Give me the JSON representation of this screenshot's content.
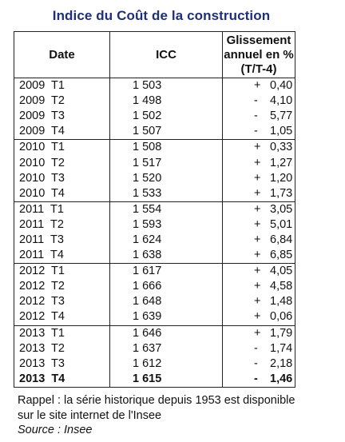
{
  "title": "Indice du Coût de la construction",
  "headers": {
    "date": "Date",
    "icc": "ICC",
    "variation_line1": "Glissement",
    "variation_line2": "annuel en %",
    "variation_line3": "(T/T-4)"
  },
  "rows": [
    {
      "date": "2009  T1",
      "icc": "1 503",
      "sign": "+",
      "value": "0,40",
      "bold": false,
      "group_start": true
    },
    {
      "date": "2009  T2",
      "icc": "1 498",
      "sign": "-",
      "value": "4,10",
      "bold": false,
      "group_start": false
    },
    {
      "date": "2009  T3",
      "icc": "1 502",
      "sign": "-",
      "value": "5,77",
      "bold": false,
      "group_start": false
    },
    {
      "date": "2009  T4",
      "icc": "1 507",
      "sign": "-",
      "value": "1,05",
      "bold": false,
      "group_start": false
    },
    {
      "date": "2010  T1",
      "icc": "1 508",
      "sign": "+",
      "value": "0,33",
      "bold": false,
      "group_start": true
    },
    {
      "date": "2010  T2",
      "icc": "1 517",
      "sign": "+",
      "value": "1,27",
      "bold": false,
      "group_start": false
    },
    {
      "date": "2010  T3",
      "icc": "1 520",
      "sign": "+",
      "value": "1,20",
      "bold": false,
      "group_start": false
    },
    {
      "date": "2010  T4",
      "icc": "1 533",
      "sign": "+",
      "value": "1,73",
      "bold": false,
      "group_start": false
    },
    {
      "date": "2011  T1",
      "icc": "1 554",
      "sign": "+",
      "value": "3,05",
      "bold": false,
      "group_start": true
    },
    {
      "date": "2011  T2",
      "icc": "1 593",
      "sign": "+",
      "value": "5,01",
      "bold": false,
      "group_start": false
    },
    {
      "date": "2011  T3",
      "icc": "1 624",
      "sign": "+",
      "value": "6,84",
      "bold": false,
      "group_start": false
    },
    {
      "date": "2011  T4",
      "icc": "1 638",
      "sign": "+",
      "value": "6,85",
      "bold": false,
      "group_start": false
    },
    {
      "date": "2012  T1",
      "icc": "1 617",
      "sign": "+",
      "value": "4,05",
      "bold": false,
      "group_start": true
    },
    {
      "date": "2012  T2",
      "icc": "1 666",
      "sign": "+",
      "value": "4,58",
      "bold": false,
      "group_start": false
    },
    {
      "date": "2012  T3",
      "icc": "1 648",
      "sign": "+",
      "value": "1,48",
      "bold": false,
      "group_start": false
    },
    {
      "date": "2012  T4",
      "icc": "1 639",
      "sign": "+",
      "value": "0,06",
      "bold": false,
      "group_start": false
    },
    {
      "date": "2013  T1",
      "icc": "1 646",
      "sign": "+",
      "value": "1,79",
      "bold": false,
      "group_start": true
    },
    {
      "date": "2013  T2",
      "icc": "1 637",
      "sign": "-",
      "value": "1,74",
      "bold": false,
      "group_start": false
    },
    {
      "date": "2013  T3",
      "icc": "1 612",
      "sign": "-",
      "value": "2,18",
      "bold": false,
      "group_start": false
    },
    {
      "date": "2013  T4",
      "icc": "1 615",
      "sign": "-",
      "value": "1,46",
      "bold": true,
      "group_start": false
    }
  ],
  "note_line1": "Rappel : la série historique depuis 1953 est disponible",
  "note_line2": "sur le site internet de l'Insee",
  "source": "Source : Insee",
  "colors": {
    "title": "#1f2f78",
    "text": "#111111",
    "border": "#222222"
  }
}
